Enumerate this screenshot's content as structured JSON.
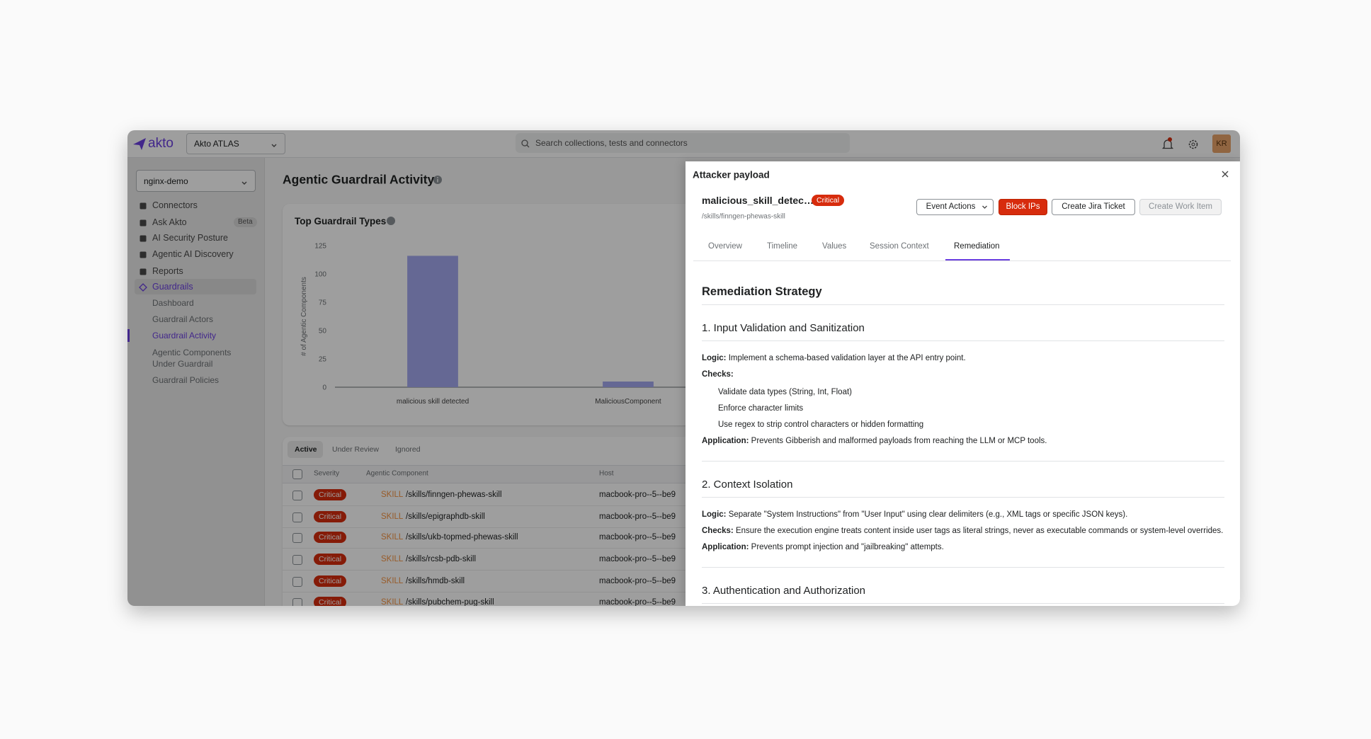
{
  "topbar": {
    "logo": "akto",
    "workspace": "Akto ATLAS",
    "search_placeholder": "Search collections, tests and connectors",
    "avatar": "KR"
  },
  "sidebar": {
    "collection": "nginx-demo",
    "nav": [
      {
        "label": "Connectors"
      },
      {
        "label": "Ask Akto",
        "badge": "Beta"
      },
      {
        "label": "AI Security Posture"
      },
      {
        "label": "Agentic AI Discovery"
      },
      {
        "label": "Reports"
      },
      {
        "label": "Guardrails",
        "active": true
      }
    ],
    "subnav": [
      {
        "label": "Dashboard"
      },
      {
        "label": "Guardrail Actors"
      },
      {
        "label": "Guardrail Activity",
        "active": true
      },
      {
        "label": "Agentic Components Under Guardrail"
      },
      {
        "label": "Guardrail Policies"
      }
    ]
  },
  "page_title": "Agentic Guardrail Activity",
  "chart_data": {
    "type": "bar",
    "title": "Top Guardrail Types",
    "y_label": "# of Agentic Components",
    "categories": [
      "malicious skill detected",
      "MaliciousComponent"
    ],
    "values": [
      116,
      5
    ],
    "color": "#a3a8ef",
    "ylim": [
      0,
      125
    ],
    "yticks": [
      0,
      25,
      50,
      75,
      100,
      125
    ],
    "grid": false
  },
  "table": {
    "tabs": [
      "Active",
      "Under Review",
      "Ignored"
    ],
    "active_tab": 0,
    "columns": [
      "Severity",
      "Agentic Component",
      "Host"
    ],
    "rows": [
      {
        "severity": "Critical",
        "type": "SKILL",
        "component": "/skills/finngen-phewas-skill",
        "host": "macbook-pro--5--be9"
      },
      {
        "severity": "Critical",
        "type": "SKILL",
        "component": "/skills/epigraphdb-skill",
        "host": "macbook-pro--5--be9"
      },
      {
        "severity": "Critical",
        "type": "SKILL",
        "component": "/skills/ukb-topmed-phewas-skill",
        "host": "macbook-pro--5--be9"
      },
      {
        "severity": "Critical",
        "type": "SKILL",
        "component": "/skills/rcsb-pdb-skill",
        "host": "macbook-pro--5--be9"
      },
      {
        "severity": "Critical",
        "type": "SKILL",
        "component": "/skills/hmdb-skill",
        "host": "macbook-pro--5--be9"
      },
      {
        "severity": "Critical",
        "type": "SKILL",
        "component": "/skills/pubchem-pug-skill",
        "host": "macbook-pro--5--be9"
      }
    ]
  },
  "drawer": {
    "title": "Attacker payload",
    "event": "malicious_skill_detec…",
    "severity": "Critical",
    "path": "/skills/finngen-phewas-skill",
    "actions": [
      {
        "label": "Event Actions",
        "style": "dropdown"
      },
      {
        "label": "Block IPs",
        "style": "critical"
      },
      {
        "label": "Create Jira Ticket",
        "style": "secondary"
      },
      {
        "label": "Create Work Item",
        "style": "disabled"
      }
    ],
    "tabs": [
      "Overview",
      "Timeline",
      "Values",
      "Session Context",
      "Remediation"
    ],
    "active_tab": 4,
    "remediation": {
      "heading": "Remediation Strategy",
      "sections": [
        {
          "title": "1. Input Validation and Sanitization",
          "items": [
            {
              "label": "Logic:",
              "text": "Implement a schema-based validation layer at the API entry point."
            },
            {
              "label": "Checks:",
              "list": [
                "Validate data types (String, Int, Float)",
                "Enforce character limits",
                "Use regex to strip control characters or hidden formatting"
              ]
            },
            {
              "label": "Application:",
              "text": "Prevents Gibberish and malformed payloads from reaching the LLM or MCP tools."
            }
          ]
        },
        {
          "title": "2. Context Isolation",
          "items": [
            {
              "label": "Logic:",
              "text": "Separate \"System Instructions\" from \"User Input\" using clear delimiters (e.g., XML tags or specific JSON keys)."
            },
            {
              "label": "Checks:",
              "text": "Ensure the execution engine treats content inside user tags as literal strings, never as executable commands or system-level overrides."
            },
            {
              "label": "Application:",
              "text": "Prevents prompt injection and \"jailbreaking\" attempts."
            }
          ]
        },
        {
          "title": "3. Authentication and Authorization",
          "items": []
        }
      ]
    }
  }
}
